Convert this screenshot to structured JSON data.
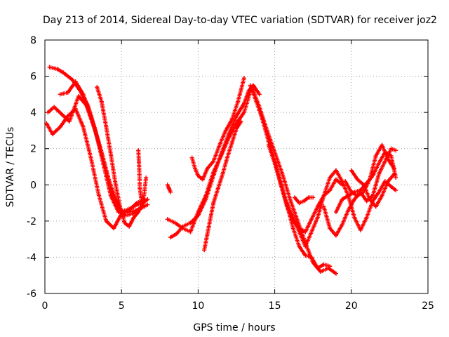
{
  "chart_data": {
    "type": "scatter",
    "title": "Day 213 of 2014, Sidereal Day-to-day VTEC variation (SDTVAR) for receiver joz2",
    "xlabel": "GPS time / hours",
    "ylabel": "SDTVAR / TECUs",
    "xlim": [
      0,
      25
    ],
    "ylim": [
      -6,
      8
    ],
    "xticks": [
      0,
      5,
      10,
      15,
      20,
      25
    ],
    "yticks": [
      -6,
      -4,
      -2,
      0,
      2,
      4,
      6,
      8
    ],
    "grid": true,
    "marker": "+",
    "color": "#ff0000",
    "series": [
      {
        "name": "track-1",
        "x": [
          0.1,
          0.5,
          1.0,
          1.5,
          2.0,
          2.5,
          3.0,
          3.5,
          4.0,
          4.5,
          5.0,
          5.5,
          6.0,
          6.5
        ],
        "y": [
          3.4,
          2.8,
          3.2,
          3.8,
          4.2,
          3.2,
          1.5,
          -0.5,
          -2.0,
          -2.4,
          -1.6,
          -1.4,
          -1.0,
          -0.8
        ]
      },
      {
        "name": "track-2",
        "x": [
          0.3,
          0.8,
          1.2,
          1.8,
          2.3,
          2.8,
          3.3,
          3.8,
          4.3,
          4.8,
          5.3,
          5.8,
          6.3
        ],
        "y": [
          6.5,
          6.4,
          6.2,
          5.8,
          5.2,
          4.4,
          3.0,
          1.2,
          -0.6,
          -1.5,
          -1.4,
          -1.2,
          -1.0
        ]
      },
      {
        "name": "track-3",
        "x": [
          0.2,
          0.6,
          1.1,
          1.6,
          2.2,
          2.7,
          3.2,
          3.7,
          4.2,
          4.7,
          5.2,
          5.7,
          6.2,
          6.7
        ],
        "y": [
          4.0,
          4.3,
          3.9,
          3.5,
          4.9,
          4.4,
          3.2,
          1.8,
          0.2,
          -1.0,
          -1.7,
          -1.6,
          -1.3,
          -1.1
        ]
      },
      {
        "name": "track-4",
        "x": [
          1.0,
          1.5,
          2.0,
          2.5,
          3.0,
          3.5,
          4.0,
          4.5,
          5.0,
          5.5,
          6.0,
          6.5
        ],
        "y": [
          5.0,
          5.1,
          5.7,
          5.0,
          3.8,
          2.4,
          0.8,
          -0.8,
          -1.6,
          -1.5,
          -1.4,
          -1.2
        ]
      },
      {
        "name": "track-5",
        "x": [
          3.4,
          3.7,
          4.0,
          4.3,
          4.6,
          4.9,
          5.2,
          5.5,
          5.8,
          6.1,
          6.4,
          6.7
        ],
        "y": [
          5.4,
          4.6,
          3.2,
          1.7,
          0.1,
          -1.2,
          -2.1,
          -2.3,
          -1.8,
          -1.5,
          -1.0,
          -0.8
        ]
      },
      {
        "name": "track-6",
        "x": [
          6.1,
          6.15,
          6.2,
          6.35,
          6.5,
          6.6
        ],
        "y": [
          1.9,
          1.0,
          -0.2,
          -1.2,
          -0.4,
          0.4
        ]
      },
      {
        "name": "track-7",
        "x": [
          8.0,
          8.1,
          8.2
        ],
        "y": [
          0.0,
          -0.2,
          -0.4
        ]
      },
      {
        "name": "track-8",
        "x": [
          8.2,
          8.6,
          9.0,
          9.5,
          10.0,
          10.5,
          11.0,
          11.5,
          12.0,
          12.5,
          13.0,
          13.3,
          13.6,
          14.0
        ],
        "y": [
          -2.9,
          -2.7,
          -2.3,
          -2.1,
          -1.7,
          -0.8,
          0.5,
          1.7,
          2.8,
          3.8,
          4.5,
          5.2,
          5.5,
          5.0
        ]
      },
      {
        "name": "track-9",
        "x": [
          8.0,
          8.5,
          9.0,
          9.5,
          10.0,
          10.5,
          11.0,
          11.5,
          12.0,
          12.5,
          13.0,
          13.5,
          14.0,
          14.5,
          15.0,
          15.5,
          16.0,
          16.5,
          17.0,
          17.5,
          18.0,
          18.5,
          19.0
        ],
        "y": [
          -1.9,
          -2.1,
          -2.4,
          -2.6,
          -1.5,
          -0.6,
          0.7,
          1.6,
          2.6,
          3.4,
          4.0,
          5.4,
          4.3,
          3.0,
          1.8,
          0.6,
          -0.8,
          -2.0,
          -3.2,
          -4.3,
          -4.8,
          -4.6,
          -4.9
        ]
      },
      {
        "name": "track-10",
        "x": [
          9.6,
          9.8,
          10.0,
          10.3,
          10.6,
          11.0,
          11.4,
          11.8,
          12.2,
          12.6,
          13.0
        ],
        "y": [
          1.5,
          0.9,
          0.5,
          0.3,
          0.9,
          1.3,
          2.2,
          3.0,
          3.6,
          4.6,
          5.9
        ]
      },
      {
        "name": "track-11",
        "x": [
          10.4,
          10.7,
          11.0,
          11.3,
          11.6,
          11.9,
          12.2,
          12.5,
          12.8
        ],
        "y": [
          -3.6,
          -2.3,
          -1.0,
          -0.2,
          0.6,
          1.5,
          2.3,
          3.1,
          3.5
        ]
      },
      {
        "name": "track-12",
        "x": [
          13.4,
          13.8,
          14.2,
          14.6,
          15.0,
          15.4,
          15.8,
          16.2,
          16.6,
          17.0,
          17.4,
          17.8,
          18.2,
          18.6
        ],
        "y": [
          5.5,
          4.6,
          3.6,
          2.4,
          1.3,
          0.1,
          -1.1,
          -2.4,
          -3.4,
          -3.9,
          -4.0,
          -4.6,
          -4.4,
          -4.5
        ]
      },
      {
        "name": "track-13",
        "x": [
          14.6,
          15.0,
          15.4,
          15.8,
          16.2,
          16.6,
          17.0,
          17.4,
          17.8,
          18.2,
          18.6,
          19.0,
          19.4
        ],
        "y": [
          2.2,
          1.2,
          0.0,
          -1.2,
          -2.0,
          -2.4,
          -2.6,
          -1.9,
          -1.2,
          -0.6,
          -0.3,
          0.3,
          0.0
        ]
      },
      {
        "name": "track-14",
        "x": [
          15.8,
          16.2,
          16.6,
          17.0,
          17.4,
          17.8,
          18.2,
          18.6,
          19.0,
          19.4,
          19.8,
          20.2,
          20.6,
          21.0,
          21.4,
          21.8,
          22.2,
          22.6,
          22.9
        ],
        "y": [
          -1.0,
          -1.8,
          -2.6,
          -3.4,
          -2.6,
          -1.8,
          -0.6,
          0.4,
          0.8,
          0.2,
          -0.6,
          -0.4,
          -0.3,
          0.1,
          0.5,
          1.2,
          1.8,
          1.6,
          0.4
        ]
      },
      {
        "name": "track-15",
        "x": [
          16.3,
          16.6,
          16.9,
          17.2,
          17.5
        ],
        "y": [
          -0.7,
          -1.0,
          -0.9,
          -0.7,
          -0.7
        ]
      },
      {
        "name": "track-16",
        "x": [
          18.2,
          18.6,
          19.0,
          19.4,
          19.8,
          20.2,
          20.6,
          21.0,
          21.4,
          21.8,
          22.2,
          22.6,
          22.9
        ],
        "y": [
          -1.2,
          -2.4,
          -2.8,
          -2.2,
          -1.4,
          -0.8,
          -0.4,
          -0.9,
          -0.6,
          0.6,
          1.3,
          2.0,
          1.9
        ]
      },
      {
        "name": "track-17",
        "x": [
          19.0,
          19.4,
          19.8,
          20.2,
          20.6,
          21.0,
          21.4,
          21.8,
          22.2,
          22.6,
          22.9
        ],
        "y": [
          -1.5,
          -0.8,
          -0.6,
          -1.8,
          -2.5,
          -1.8,
          -0.9,
          -0.4,
          0.2,
          -0.1,
          -0.3
        ]
      },
      {
        "name": "track-18",
        "x": [
          19.6,
          20.0,
          20.4,
          20.8,
          21.2,
          21.6,
          22.0,
          22.4,
          22.8
        ],
        "y": [
          0.2,
          -0.4,
          -0.6,
          -0.4,
          0.3,
          1.6,
          2.2,
          1.4,
          0.9
        ]
      },
      {
        "name": "track-19",
        "x": [
          20.0,
          20.4,
          20.8,
          21.2,
          21.6,
          22.0,
          22.4,
          22.8
        ],
        "y": [
          0.8,
          0.3,
          0.0,
          -0.8,
          -1.2,
          -0.6,
          0.2,
          0.6
        ]
      }
    ]
  }
}
